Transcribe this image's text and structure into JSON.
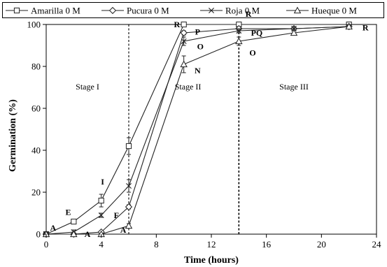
{
  "chart_data": {
    "type": "line",
    "xlabel": "Time (hours)",
    "ylabel": "Germination (%)",
    "xlim": [
      0,
      24
    ],
    "ylim": [
      0,
      100
    ],
    "xticks": [
      "0",
      "4",
      "8",
      "12",
      "16",
      "20",
      "24"
    ],
    "yticks": [
      "0",
      "20",
      "40",
      "60",
      "80",
      "100"
    ],
    "grid": false,
    "legend_position": "top",
    "series": [
      {
        "name": "Amarilla 0 M",
        "marker": "square",
        "x": [
          0,
          2,
          4,
          6,
          10,
          14,
          22
        ],
        "y": [
          0,
          6,
          16,
          42,
          100,
          100,
          100
        ],
        "err": [
          0,
          1,
          3,
          4,
          1,
          1,
          0
        ]
      },
      {
        "name": "Pucura 0 M",
        "marker": "diamond",
        "x": [
          0,
          2,
          4,
          6,
          10,
          14,
          18,
          22
        ],
        "y": [
          0,
          0,
          1,
          13,
          96,
          98,
          98,
          99
        ],
        "err": [
          0,
          0,
          0,
          1,
          1,
          1,
          0,
          0
        ]
      },
      {
        "name": "Roja 0 M",
        "marker": "x",
        "x": [
          0,
          2,
          4,
          6,
          10,
          14,
          18,
          22
        ],
        "y": [
          0,
          1,
          9,
          23,
          92,
          97,
          98,
          99
        ],
        "err": [
          0,
          1,
          1,
          3,
          2,
          1,
          1,
          0
        ]
      },
      {
        "name": "Hueque 0 M",
        "marker": "triangle",
        "x": [
          0,
          2,
          4,
          6,
          10,
          14,
          18,
          22
        ],
        "y": [
          0,
          0,
          0,
          4,
          81,
          92,
          96,
          99
        ],
        "err": [
          0,
          0,
          0,
          1,
          4,
          2,
          1,
          0
        ]
      }
    ],
    "stage_dividers_x": [
      6,
      14
    ],
    "stage_labels": [
      {
        "text": "Stage I",
        "x": 3,
        "y": 69
      },
      {
        "text": "Stage II",
        "x": 10.3,
        "y": 69
      },
      {
        "text": "Stage III",
        "x": 18,
        "y": 69
      }
    ],
    "annotations": [
      {
        "text": "A",
        "x": 0.5,
        "y": 3
      },
      {
        "text": "E",
        "x": 1.6,
        "y": 10.5
      },
      {
        "text": "A",
        "x": 3,
        "y": 0
      },
      {
        "text": "I",
        "x": 4.1,
        "y": 25
      },
      {
        "text": "F",
        "x": 5.1,
        "y": 9
      },
      {
        "text": "A",
        "x": 5.6,
        "y": 2
      },
      {
        "text": "R",
        "x": 9.5,
        "y": 100
      },
      {
        "text": "P",
        "x": 11,
        "y": 96.5
      },
      {
        "text": "O",
        "x": 11.2,
        "y": 89.5
      },
      {
        "text": "N",
        "x": 11,
        "y": 78
      },
      {
        "text": "R",
        "x": 14.7,
        "y": 105
      },
      {
        "text": "PQ",
        "x": 15.3,
        "y": 96
      },
      {
        "text": "O",
        "x": 15,
        "y": 86.5
      },
      {
        "text": "R",
        "x": 23.2,
        "y": 98.5
      }
    ]
  }
}
